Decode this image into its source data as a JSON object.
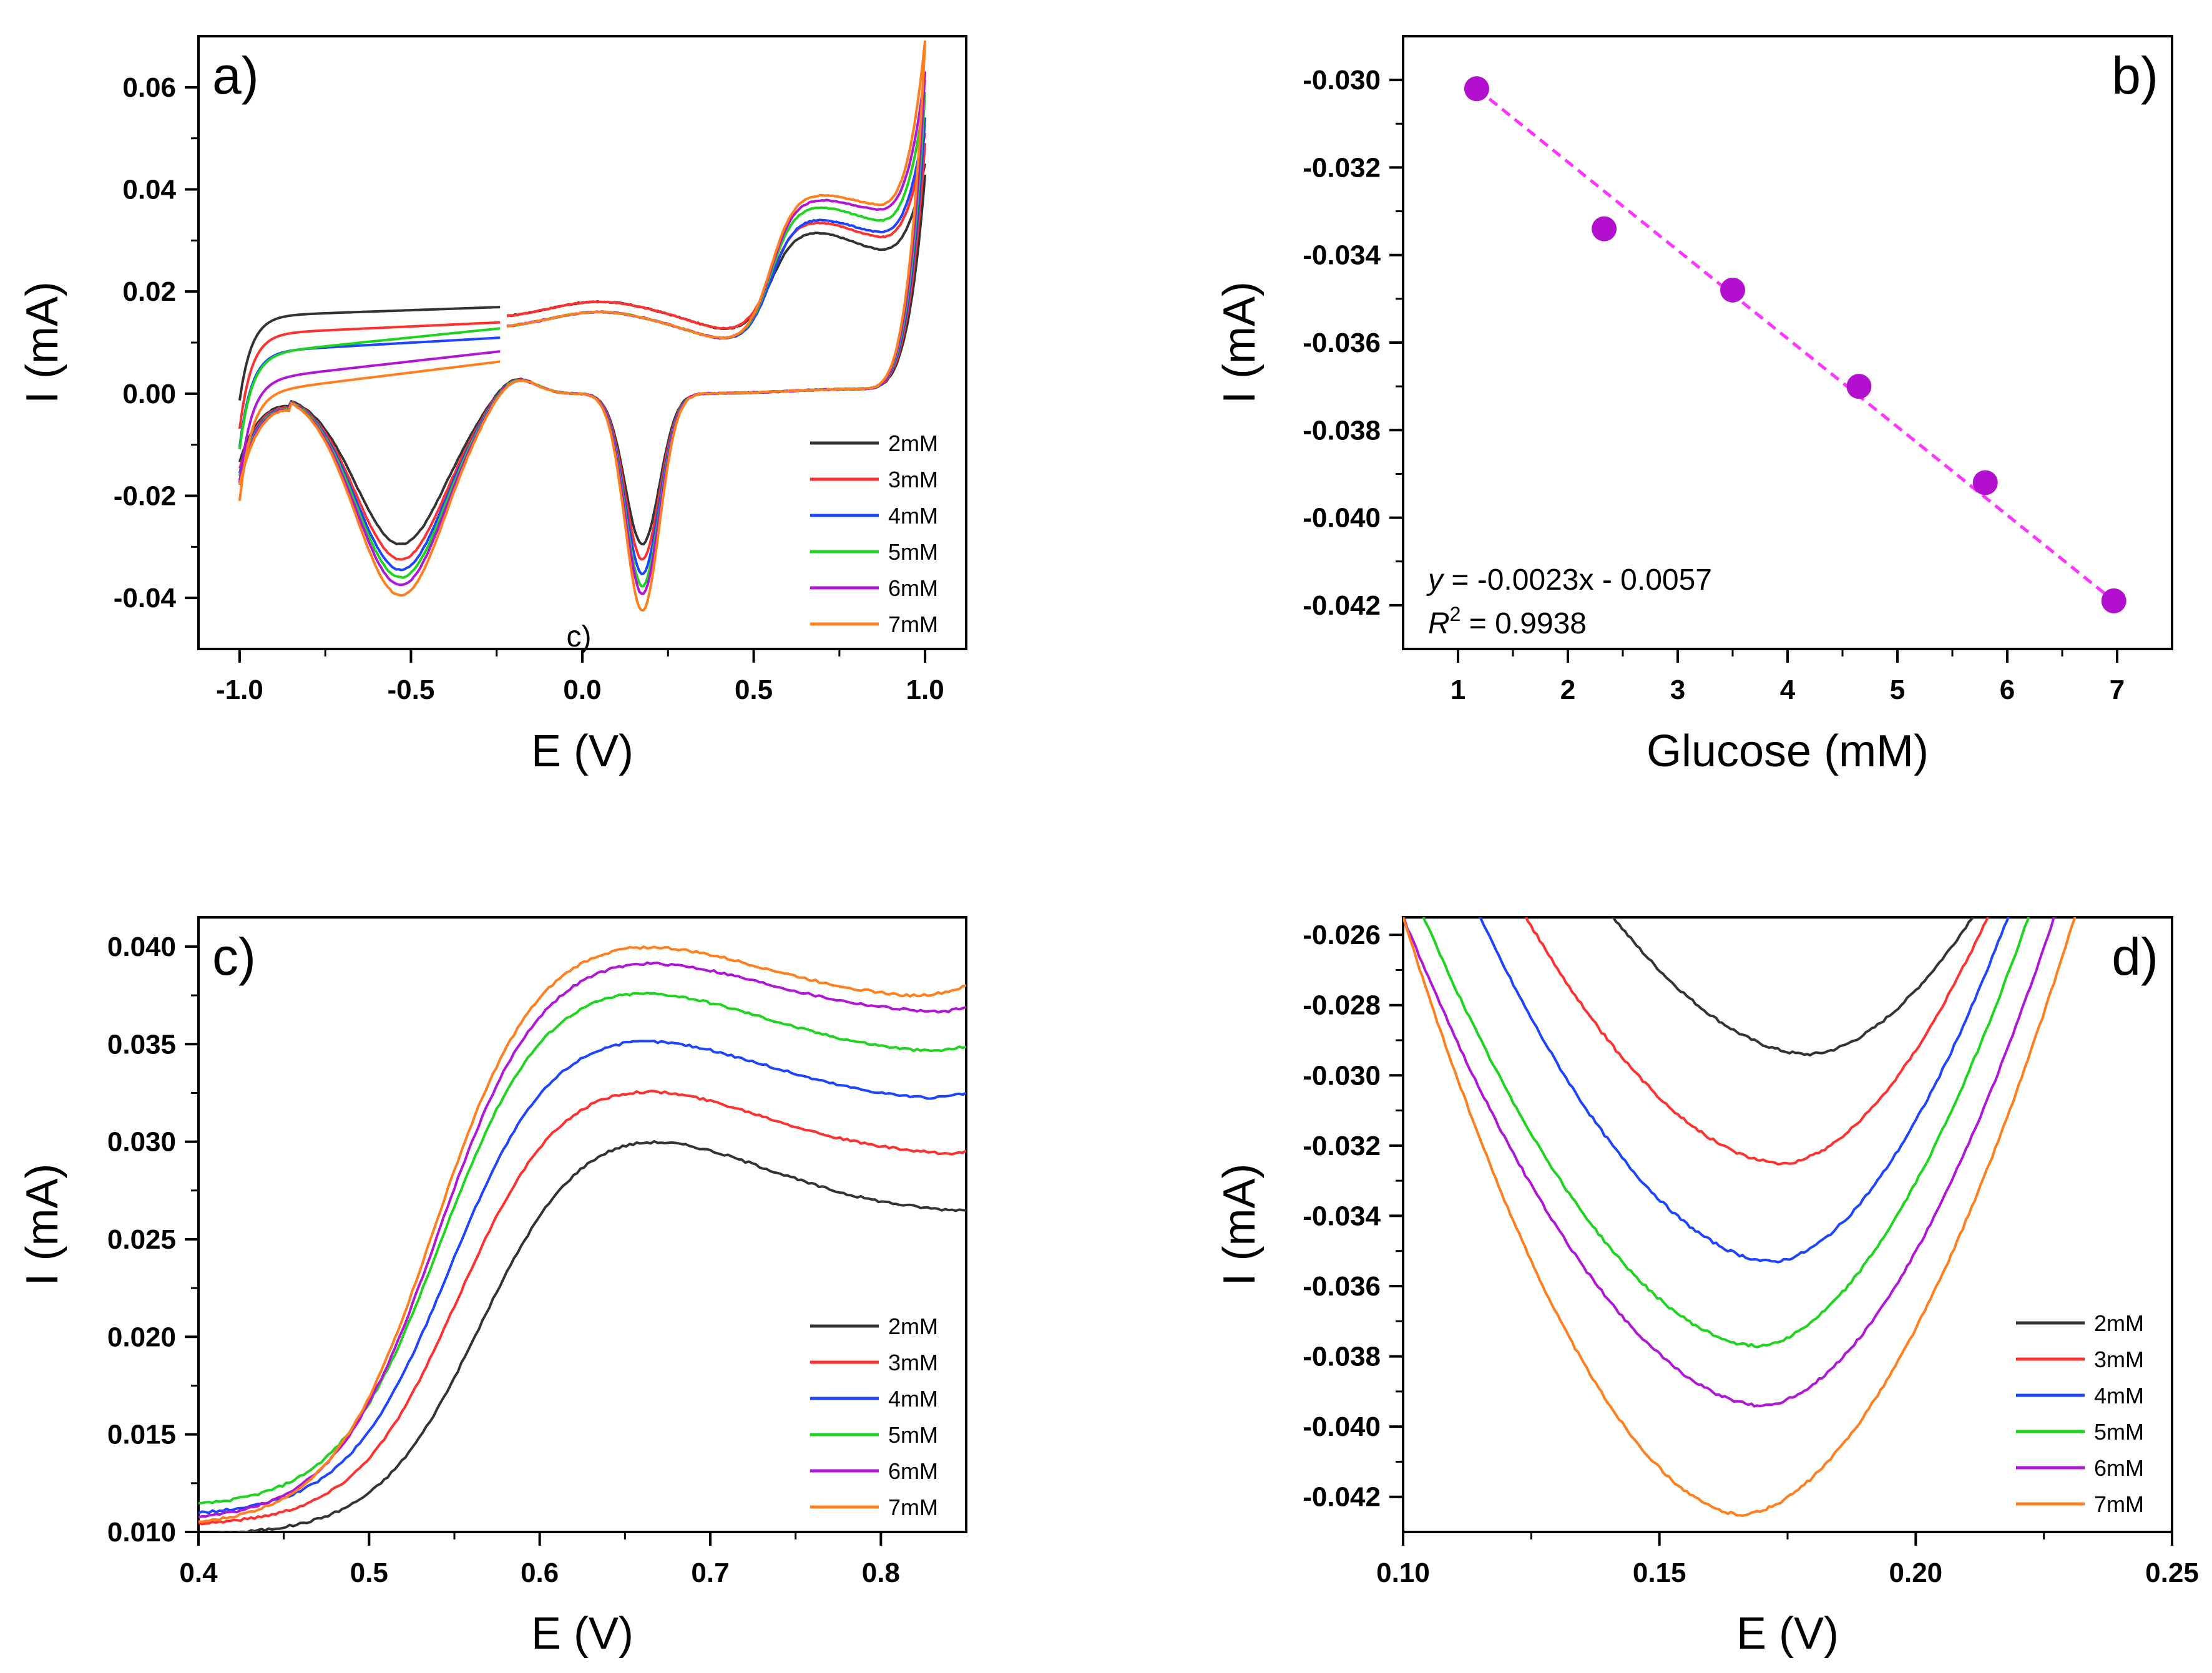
{
  "chart_data": [
    {
      "panel": "a)",
      "type": "line",
      "xlabel": "E (V)",
      "ylabel": "I (mA)",
      "xlim": [
        -1.12,
        1.12
      ],
      "ylim": [
        -0.05,
        0.07
      ],
      "xticks": [
        -1.0,
        -0.5,
        0.0,
        0.5,
        1.0
      ],
      "xtick_labels": [
        "-1.0",
        "-0.5",
        "0.0",
        "0.5",
        "1.0"
      ],
      "yticks": [
        -0.04,
        -0.02,
        0.0,
        0.02,
        0.04,
        0.06
      ],
      "ytick_labels": [
        "-0.04",
        "-0.02",
        "0.00",
        "0.02",
        "0.04",
        "0.06"
      ],
      "legend": [
        "2mM",
        "3mM",
        "4mM",
        "5mM",
        "6mM",
        "7mM"
      ],
      "legend_position": "bottom-right",
      "stray_text": "c)",
      "series": [
        {
          "name": "2mM",
          "color": "#333333",
          "anodic": {
            "start": 0.0,
            "plateau": 0.0165,
            "peak": 0.0315,
            "valley": 0.0265,
            "end": 0.044
          },
          "cathodic": {
            "peak1": -0.0295,
            "peak2": -0.0295
          }
        },
        {
          "name": "3mM",
          "color": "#ff3030",
          "anodic": {
            "start": -0.005,
            "plateau": 0.0135,
            "peak": 0.0335,
            "valley": 0.029,
            "end": 0.05
          },
          "cathodic": {
            "peak1": -0.0325,
            "peak2": -0.0325
          }
        },
        {
          "name": "4mM",
          "color": "#1e44ff",
          "anodic": {
            "start": -0.008,
            "plateau": 0.0105,
            "peak": 0.036,
            "valley": 0.032,
            "end": 0.055
          },
          "cathodic": {
            "peak1": -0.0345,
            "peak2": -0.0353
          }
        },
        {
          "name": "5mM",
          "color": "#1ed41e",
          "anodic": {
            "start": -0.008,
            "plateau": 0.0105,
            "peak": 0.0385,
            "valley": 0.0343,
            "end": 0.06
          },
          "cathodic": {
            "peak1": -0.036,
            "peak2": -0.0377
          }
        },
        {
          "name": "6mM",
          "color": "#b016d6",
          "anodic": {
            "start": -0.014,
            "plateau": 0.006,
            "peak": 0.0398,
            "valley": 0.0365,
            "end": 0.064
          },
          "cathodic": {
            "peak1": -0.0375,
            "peak2": -0.0393
          }
        },
        {
          "name": "7mM",
          "color": "#ff7f1e",
          "anodic": {
            "start": -0.017,
            "plateau": 0.004,
            "peak": 0.0408,
            "valley": 0.0375,
            "end": 0.07
          },
          "cathodic": {
            "peak1": -0.0395,
            "peak2": -0.0425
          }
        }
      ]
    },
    {
      "panel": "b)",
      "type": "scatter",
      "xlabel": "Glucose (mM)",
      "ylabel": "I (mA)",
      "xlim": [
        0.5,
        7.5
      ],
      "ylim": [
        -0.043,
        -0.029
      ],
      "xticks": [
        1,
        2,
        3,
        4,
        5,
        6,
        7
      ],
      "xtick_labels": [
        "1",
        "2",
        "3",
        "4",
        "5",
        "6",
        "7"
      ],
      "yticks": [
        -0.042,
        -0.04,
        -0.038,
        -0.036,
        -0.034,
        -0.032,
        -0.03
      ],
      "ytick_labels": [
        "-0.042",
        "-0.040",
        "-0.038",
        "-0.036",
        "-0.034",
        "-0.032",
        "-0.030"
      ],
      "x": [
        1.17,
        2.33,
        3.5,
        4.65,
        5.8,
        6.97
      ],
      "y": [
        -0.0302,
        -0.0334,
        -0.0348,
        -0.037,
        -0.0392,
        -0.0419
      ],
      "marker_color": "#b20fcf",
      "fit": {
        "slope": -0.0023,
        "intercept": -0.0057,
        "x_range": [
          1.17,
          6.97
        ],
        "color": "#ff33ff"
      },
      "equation": {
        "y_label": "y",
        "equation_text": " = -0.0023x - 0.0057",
        "r_label": "R",
        "r_sup": "2",
        "r_value_text": " = 0.9938"
      }
    },
    {
      "panel": "c)",
      "type": "line",
      "xlabel": "E (V)",
      "ylabel": "I (mA)",
      "xlim": [
        0.4,
        0.85
      ],
      "ylim": [
        0.01,
        0.0415
      ],
      "xticks": [
        0.4,
        0.5,
        0.6,
        0.7,
        0.8
      ],
      "xtick_labels": [
        "0.4",
        "0.5",
        "0.6",
        "0.7",
        "0.8"
      ],
      "yticks": [
        0.01,
        0.015,
        0.02,
        0.025,
        0.03,
        0.035,
        0.04
      ],
      "ytick_labels": [
        "0.010",
        "0.015",
        "0.020",
        "0.025",
        "0.030",
        "0.035",
        "0.040"
      ],
      "legend": [
        "2mM",
        "3mM",
        "4mM",
        "5mM",
        "6mM",
        "7mM"
      ],
      "legend_position": "bottom-right",
      "series": [
        {
          "name": "2mM",
          "color": "#333333",
          "base": 0.0098,
          "peak_x": 0.648,
          "peak": 0.0313,
          "valley_x": 0.835,
          "valley": 0.0262,
          "end": 0.0263,
          "shift": 0.025
        },
        {
          "name": "3mM",
          "color": "#ff3030",
          "base": 0.0103,
          "peak_x": 0.648,
          "peak": 0.0336,
          "valley_x": 0.835,
          "valley": 0.0291,
          "end": 0.0293,
          "shift": 0.012
        },
        {
          "name": "4mM",
          "color": "#1e44ff",
          "base": 0.0108,
          "peak_x": 0.648,
          "peak": 0.0361,
          "valley_x": 0.82,
          "valley": 0.0319,
          "end": 0.0323,
          "shift": 0.007
        },
        {
          "name": "5mM",
          "color": "#1ed41e",
          "base": 0.0112,
          "peak_x": 0.65,
          "peak": 0.0385,
          "valley_x": 0.82,
          "valley": 0.0343,
          "end": 0.0347,
          "shift": 0.002
        },
        {
          "name": "6mM",
          "color": "#b016d6",
          "base": 0.0105,
          "peak_x": 0.66,
          "peak": 0.0399,
          "valley_x": 0.83,
          "valley": 0.0364,
          "end": 0.0368,
          "shift": 0.0
        },
        {
          "name": "7mM",
          "color": "#ff7f1e",
          "base": 0.0102,
          "peak_x": 0.652,
          "peak": 0.0408,
          "valley_x": 0.81,
          "valley": 0.0371,
          "end": 0.0378,
          "shift": -0.002
        }
      ]
    },
    {
      "panel": "d)",
      "type": "line",
      "xlabel": "E (V)",
      "ylabel": "I (mA)",
      "xlim": [
        0.1,
        0.25
      ],
      "ylim": [
        -0.043,
        -0.0255
      ],
      "xticks": [
        0.1,
        0.15,
        0.2,
        0.25
      ],
      "xtick_labels": [
        "0.10",
        "0.15",
        "0.20",
        "0.25"
      ],
      "yticks": [
        -0.042,
        -0.04,
        -0.038,
        -0.036,
        -0.034,
        -0.032,
        -0.03,
        -0.028,
        -0.026
      ],
      "ytick_labels": [
        "-0.042",
        "-0.040",
        "-0.038",
        "-0.036",
        "-0.034",
        "-0.032",
        "-0.030",
        "-0.028",
        "-0.026"
      ],
      "legend": [
        "2mM",
        "3mM",
        "4mM",
        "5mM",
        "6mM",
        "7mM"
      ],
      "legend_position": "bottom-right",
      "series": [
        {
          "name": "2mM",
          "color": "#333333",
          "center": 0.179,
          "min": -0.0294,
          "left_x": 0.141,
          "right_x": 0.211
        },
        {
          "name": "3mM",
          "color": "#ff3030",
          "center": 0.174,
          "min": -0.0325,
          "left_x": 0.124,
          "right_x": 0.214
        },
        {
          "name": "4mM",
          "color": "#1e44ff",
          "center": 0.172,
          "min": -0.0353,
          "left_x": 0.115,
          "right_x": 0.218
        },
        {
          "name": "5mM",
          "color": "#1ed41e",
          "center": 0.169,
          "min": -0.0377,
          "left_x": 0.104,
          "right_x": 0.222
        },
        {
          "name": "6mM",
          "color": "#b016d6",
          "center": 0.17,
          "min": -0.0394,
          "left_x": 0.1,
          "right_x": 0.227
        },
        {
          "name": "7mM",
          "color": "#ff7f1e",
          "center": 0.166,
          "min": -0.0425,
          "left_x": 0.1,
          "right_x": 0.231
        }
      ]
    }
  ]
}
